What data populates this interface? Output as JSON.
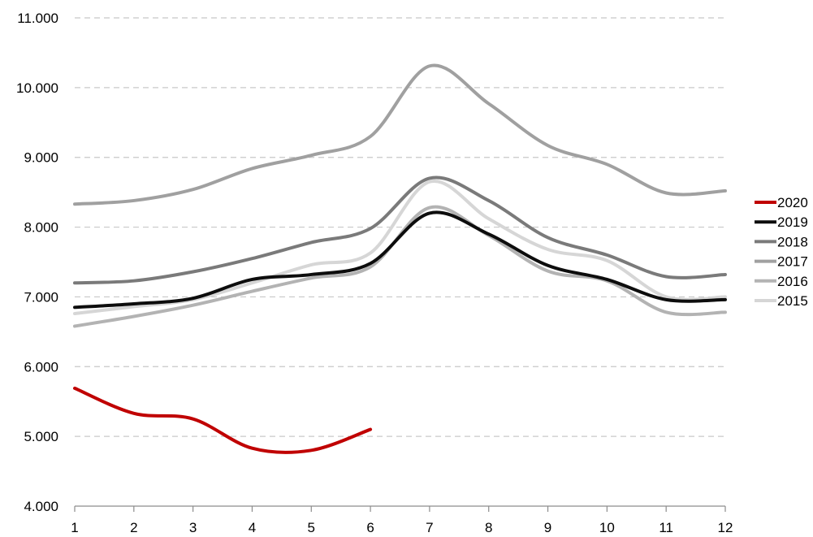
{
  "chart_data": {
    "type": "line",
    "title": "",
    "xlabel": "",
    "ylabel": "",
    "x": [
      1,
      2,
      3,
      4,
      5,
      6,
      7,
      8,
      9,
      10,
      11,
      12
    ],
    "ylim": [
      4000,
      11000
    ],
    "yticks": [
      4000,
      5000,
      6000,
      7000,
      8000,
      9000,
      10000,
      11000
    ],
    "ytick_labels": [
      "4.000",
      "5.000",
      "6.000",
      "7.000",
      "8.000",
      "9.000",
      "10.000",
      "11.000"
    ],
    "xtick_labels": [
      "1",
      "2",
      "3",
      "4",
      "5",
      "6",
      "7",
      "8",
      "9",
      "10",
      "11",
      "12"
    ],
    "grid": "horizontal dashed",
    "legend_position": "right",
    "series": [
      {
        "name": "2020",
        "color": "#c00000",
        "values": [
          5690,
          5330,
          5250,
          4830,
          4800,
          5100,
          null,
          null,
          null,
          null,
          null,
          null
        ]
      },
      {
        "name": "2019",
        "color": "#0d0d0d",
        "values": [
          6850,
          6900,
          6980,
          7250,
          7320,
          7480,
          8200,
          7900,
          7450,
          7250,
          6960,
          6960
        ]
      },
      {
        "name": "2018",
        "color": "#7a7a7a",
        "values": [
          7200,
          7230,
          7360,
          7550,
          7780,
          7980,
          8700,
          8380,
          7850,
          7600,
          7290,
          7320
        ]
      },
      {
        "name": "2017",
        "color": "#a0a0a0",
        "values": [
          8330,
          8380,
          8540,
          8840,
          9030,
          9300,
          10310,
          9770,
          9170,
          8900,
          8490,
          8520
        ]
      },
      {
        "name": "2016",
        "color": "#b3b3b3",
        "values": [
          6580,
          6720,
          6880,
          7080,
          7270,
          7430,
          8280,
          7880,
          7370,
          7230,
          6780,
          6780
        ]
      },
      {
        "name": "2015",
        "color": "#d6d6d6",
        "values": [
          6760,
          6860,
          6960,
          7200,
          7460,
          7630,
          8650,
          8120,
          7680,
          7520,
          7000,
          7000
        ]
      }
    ]
  }
}
